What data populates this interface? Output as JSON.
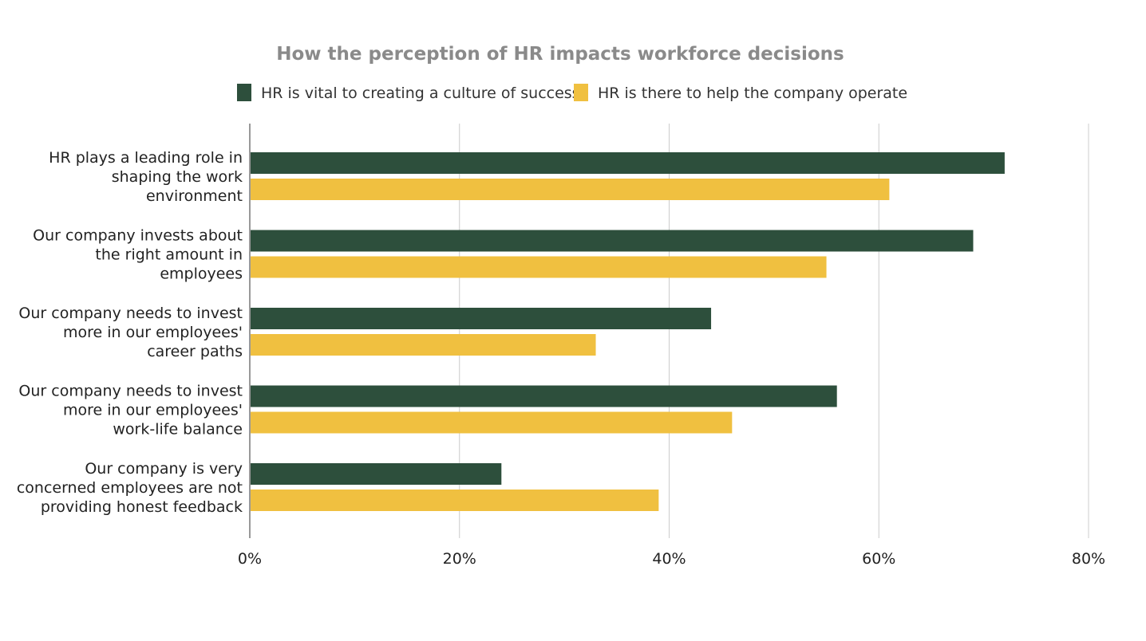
{
  "chart_data": {
    "type": "bar",
    "orientation": "horizontal",
    "title": "How the perception of HR impacts workforce decisions",
    "xlabel": "",
    "ylabel": "",
    "categories": [
      [
        "HR plays a leading role in",
        "shaping the work",
        "environment"
      ],
      [
        "Our company invests about",
        "the right amount in",
        "employees"
      ],
      [
        "Our company needs to invest",
        "more in our employees'",
        "career paths"
      ],
      [
        "Our company needs to invest",
        "more in our employees'",
        "work-life balance"
      ],
      [
        "Our company is very",
        "concerned employees are not",
        "providing honest feedback"
      ]
    ],
    "series": [
      {
        "name": "HR is vital to creating a culture of success",
        "color": "#2d4f3c",
        "values": [
          72,
          69,
          44,
          56,
          24
        ]
      },
      {
        "name": "HR is there to help the company operate",
        "color": "#f0c040",
        "values": [
          61,
          55,
          33,
          46,
          39
        ]
      }
    ],
    "xlim": [
      0,
      80
    ],
    "xticks": [
      "0%",
      "20%",
      "40%",
      "60%",
      "80%"
    ],
    "grid": true,
    "legend": "top"
  }
}
